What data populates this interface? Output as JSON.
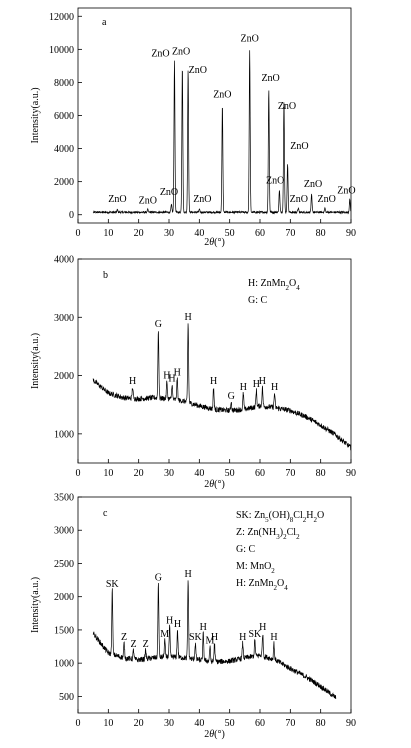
{
  "chart_data": [
    {
      "type": "line",
      "panel_label": "a",
      "xlabel": "2θ(°)",
      "ylabel": "Intensity(a.u.)",
      "xlim": [
        0,
        90
      ],
      "ylim": [
        -500,
        12500
      ],
      "xticks": [
        0,
        10,
        20,
        30,
        40,
        50,
        60,
        70,
        80,
        90
      ],
      "yticks": [
        0,
        2000,
        4000,
        6000,
        8000,
        10000,
        12000
      ],
      "baseline": 150,
      "x_start": 5,
      "x_end": 90,
      "peaks": [
        {
          "x": 31.8,
          "y": 9300,
          "label": "ZnO",
          "lx": 27.2,
          "ly": 9400
        },
        {
          "x": 34.4,
          "y": 9000,
          "label": "ZnO",
          "lx": 34.0,
          "ly": 9500
        },
        {
          "x": 36.3,
          "y": 8800,
          "label": "ZnO",
          "lx": 39.5,
          "ly": 8400
        },
        {
          "x": 47.6,
          "y": 6600,
          "label": "ZnO",
          "lx": 47.6,
          "ly": 6900
        },
        {
          "x": 56.6,
          "y": 9900,
          "label": "ZnO",
          "lx": 56.6,
          "ly": 10300
        },
        {
          "x": 62.9,
          "y": 7600,
          "label": "ZnO",
          "lx": 63.5,
          "ly": 7900
        },
        {
          "x": 66.4,
          "y": 1500,
          "label": "ZnO",
          "lx": 65.0,
          "ly": 1700
        },
        {
          "x": 67.9,
          "y": 6900,
          "label": "ZnO",
          "lx": 68.9,
          "ly": 6200
        },
        {
          "x": 69.1,
          "y": 3100,
          "label": "ZnO",
          "lx": 73.0,
          "ly": 3800
        },
        {
          "x": 72.6,
          "y": 400,
          "label": "ZnO",
          "lx": 72.8,
          "ly": 600
        },
        {
          "x": 77.0,
          "y": 1200,
          "label": "ZnO",
          "lx": 77.5,
          "ly": 1500
        },
        {
          "x": 81.4,
          "y": 400,
          "label": "ZnO",
          "lx": 82.0,
          "ly": 600
        },
        {
          "x": 89.6,
          "y": 900,
          "label": "ZnO",
          "lx": 88.5,
          "ly": 1100
        },
        {
          "x": 13.0,
          "y": 300,
          "label": "ZnO",
          "lx": 13.0,
          "ly": 600
        },
        {
          "x": 23.0,
          "y": 300,
          "label": "ZnO",
          "lx": 23.0,
          "ly": 500
        },
        {
          "x": 30.8,
          "y": 600,
          "label": "ZnO",
          "lx": 30.0,
          "ly": 1000
        },
        {
          "x": 40.0,
          "y": 300,
          "label": "ZnO",
          "lx": 41.0,
          "ly": 600
        }
      ],
      "legend": []
    },
    {
      "type": "line",
      "panel_label": "b",
      "xlabel": "2θ(°)",
      "ylabel": "Intensity(a.u.)",
      "xlim": [
        0,
        90
      ],
      "ylim": [
        500,
        4000
      ],
      "xticks": [
        0,
        10,
        20,
        30,
        40,
        50,
        60,
        70,
        80,
        90
      ],
      "yticks": [
        1000,
        2000,
        3000,
        4000
      ],
      "baseline_points": [
        [
          5,
          1920
        ],
        [
          10,
          1700
        ],
        [
          15,
          1620
        ],
        [
          20,
          1600
        ],
        [
          25,
          1620
        ],
        [
          30,
          1600
        ],
        [
          35,
          1560
        ],
        [
          40,
          1480
        ],
        [
          45,
          1420
        ],
        [
          50,
          1400
        ],
        [
          55,
          1420
        ],
        [
          60,
          1480
        ],
        [
          65,
          1450
        ],
        [
          70,
          1400
        ],
        [
          75,
          1300
        ],
        [
          80,
          1150
        ],
        [
          85,
          980
        ],
        [
          90,
          760
        ]
      ],
      "peaks": [
        {
          "x": 18.0,
          "y": 1800,
          "label": "H"
        },
        {
          "x": 26.5,
          "y": 2780,
          "label": "G"
        },
        {
          "x": 29.3,
          "y": 1900,
          "label": "H"
        },
        {
          "x": 31.0,
          "y": 1850,
          "label": "H"
        },
        {
          "x": 32.7,
          "y": 1950,
          "label": "H"
        },
        {
          "x": 36.3,
          "y": 2900,
          "label": "H"
        },
        {
          "x": 44.7,
          "y": 1800,
          "label": "H"
        },
        {
          "x": 50.5,
          "y": 1550,
          "label": "G"
        },
        {
          "x": 54.5,
          "y": 1700,
          "label": "H"
        },
        {
          "x": 58.8,
          "y": 1750,
          "label": "H"
        },
        {
          "x": 60.8,
          "y": 1800,
          "label": "H"
        },
        {
          "x": 64.8,
          "y": 1700,
          "label": "H"
        }
      ],
      "legend": [
        {
          "code": "H:",
          "formula": [
            [
              "ZnMn",
              ""
            ],
            [
              "2",
              "sub"
            ],
            [
              "O",
              ""
            ],
            [
              "4",
              "sub"
            ]
          ]
        },
        {
          "code": "G:",
          "formula": [
            [
              "C",
              ""
            ]
          ]
        }
      ]
    },
    {
      "type": "line",
      "panel_label": "c",
      "xlabel": "2θ(°)",
      "ylabel": "Intensity(a.u.)",
      "xlim": [
        0,
        90
      ],
      "ylim": [
        250,
        3500
      ],
      "xticks": [
        0,
        10,
        20,
        30,
        40,
        50,
        60,
        70,
        80,
        90
      ],
      "yticks": [
        500,
        1000,
        1500,
        2000,
        2500,
        3000,
        3500
      ],
      "baseline_points": [
        [
          5,
          1450
        ],
        [
          10,
          1150
        ],
        [
          15,
          1080
        ],
        [
          20,
          1050
        ],
        [
          25,
          1080
        ],
        [
          30,
          1100
        ],
        [
          35,
          1080
        ],
        [
          40,
          1050
        ],
        [
          45,
          1020
        ],
        [
          50,
          1030
        ],
        [
          55,
          1080
        ],
        [
          60,
          1120
        ],
        [
          65,
          1050
        ],
        [
          70,
          920
        ],
        [
          75,
          800
        ],
        [
          80,
          650
        ],
        [
          85,
          480
        ]
      ],
      "peaks": [
        {
          "x": 11.3,
          "y": 2100,
          "label": "SK"
        },
        {
          "x": 15.2,
          "y": 1300,
          "label": "Z"
        },
        {
          "x": 18.3,
          "y": 1200,
          "label": "Z"
        },
        {
          "x": 22.3,
          "y": 1200,
          "label": "Z"
        },
        {
          "x": 26.5,
          "y": 2200,
          "label": "G"
        },
        {
          "x": 28.6,
          "y": 1350,
          "label": "M"
        },
        {
          "x": 30.2,
          "y": 1550,
          "label": "H"
        },
        {
          "x": 32.8,
          "y": 1500,
          "label": "H"
        },
        {
          "x": 36.3,
          "y": 2250,
          "label": "H"
        },
        {
          "x": 38.7,
          "y": 1300,
          "label": "SK"
        },
        {
          "x": 41.3,
          "y": 1450,
          "label": "H"
        },
        {
          "x": 43.5,
          "y": 1250,
          "label": "M"
        },
        {
          "x": 45.0,
          "y": 1300,
          "label": "H"
        },
        {
          "x": 54.3,
          "y": 1300,
          "label": "H"
        },
        {
          "x": 58.3,
          "y": 1350,
          "label": "SK"
        },
        {
          "x": 60.9,
          "y": 1450,
          "label": "H"
        },
        {
          "x": 64.6,
          "y": 1300,
          "label": "H"
        }
      ],
      "legend": [
        {
          "code": "SK:",
          "formula": [
            [
              "Zn",
              ""
            ],
            [
              "5",
              "sub"
            ],
            [
              "(OH)",
              ""
            ],
            [
              "8",
              "sub"
            ],
            [
              "Cl",
              ""
            ],
            [
              "2",
              "sub"
            ],
            [
              "H",
              ""
            ],
            [
              "2",
              "sub"
            ],
            [
              "O",
              ""
            ]
          ]
        },
        {
          "code": "Z:",
          "formula": [
            [
              "Zn(NH",
              ""
            ],
            [
              "3",
              "sub"
            ],
            [
              ")",
              ""
            ],
            [
              "2",
              "sub"
            ],
            [
              "Cl",
              ""
            ],
            [
              "2",
              "sub"
            ]
          ]
        },
        {
          "code": "G:",
          "formula": [
            [
              "C",
              ""
            ]
          ]
        },
        {
          "code": "M:",
          "formula": [
            [
              "MnO",
              ""
            ],
            [
              "2",
              "sub"
            ]
          ]
        },
        {
          "code": "H:",
          "formula": [
            [
              "ZnMn",
              ""
            ],
            [
              "2",
              "sub"
            ],
            [
              "O",
              ""
            ],
            [
              "4",
              "sub"
            ]
          ]
        }
      ]
    }
  ]
}
